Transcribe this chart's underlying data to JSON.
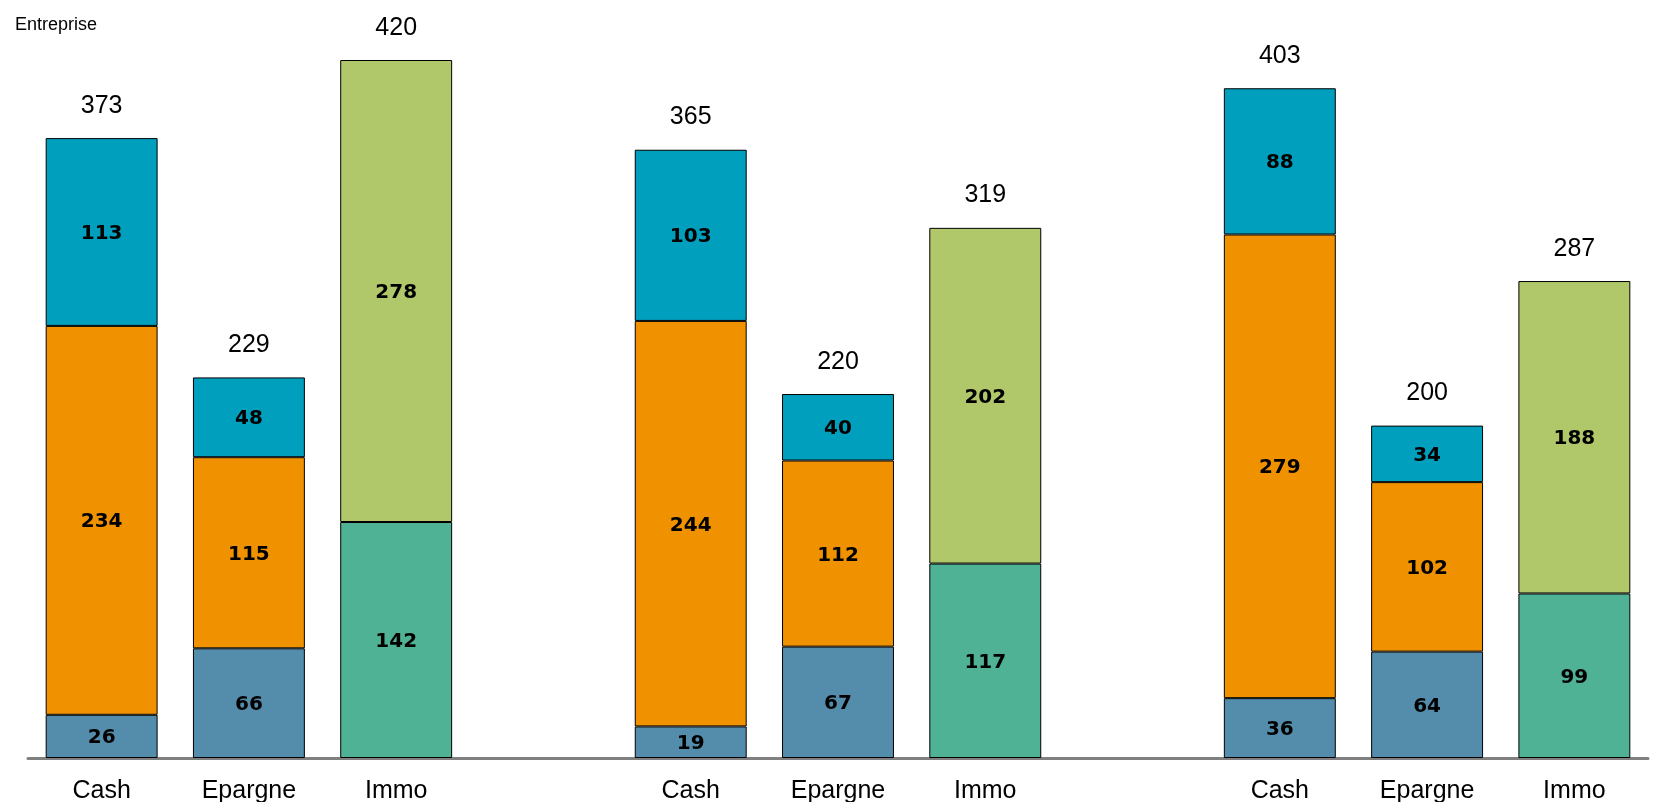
{
  "chart_data": {
    "type": "bar",
    "title": "Entreprise",
    "categories": [
      "Cash",
      "Epargne",
      "Immo",
      null,
      "Cash",
      "Epargne",
      "Immo",
      null,
      "Cash",
      "Epargne",
      "Immo"
    ],
    "stacked": true,
    "data_labels": true,
    "tick_labels": "x",
    "series": [
      {
        "color": "#548dab",
        "values": [
          26,
          66,
          null,
          null,
          19,
          67,
          null,
          null,
          36,
          64,
          null
        ]
      },
      {
        "color": "#f09200",
        "values": [
          234,
          115,
          null,
          null,
          244,
          112,
          null,
          null,
          279,
          102,
          null
        ]
      },
      {
        "color": "#009fbd",
        "values": [
          113,
          48,
          null,
          null,
          103,
          40,
          null,
          null,
          88,
          34,
          null
        ]
      },
      {
        "color": "#50b294",
        "values": [
          null,
          null,
          142,
          null,
          null,
          null,
          117,
          null,
          null,
          null,
          99
        ]
      },
      {
        "color": "#b0c86a",
        "values": [
          null,
          null,
          278,
          null,
          null,
          null,
          202,
          null,
          null,
          null,
          188
        ]
      }
    ],
    "totals": [
      "373",
      "229",
      "420",
      null,
      "365",
      "220",
      "319",
      null,
      "403",
      "200",
      "287"
    ]
  }
}
